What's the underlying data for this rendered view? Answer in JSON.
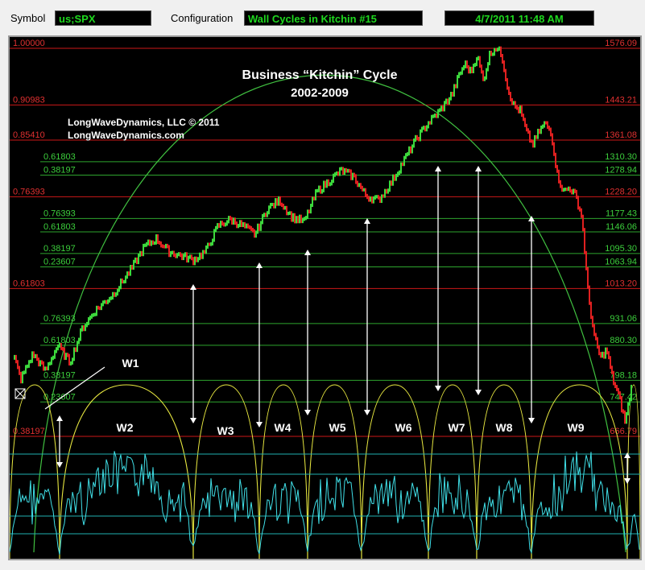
{
  "toolbar": {
    "symbol_label": "Symbol",
    "symbol_value": "us;SPX",
    "config_label": "Configuration",
    "config_value": "Wall Cycles in Kitchin #15",
    "datetime_value": "4/7/2011 11:48 AM"
  },
  "colors": {
    "background": "#000000",
    "red_level": "#cc1818",
    "green_level": "#2ea52e",
    "cyan_level": "#20b0b0",
    "price_up": "#3cd83c",
    "price_down": "#e02020",
    "oscillator": "#40e0e8",
    "arc": "#e8e840",
    "big_arc": "#40c040"
  },
  "chart_data": {
    "type": "line",
    "title": "Business “Kitchin” Cycle",
    "subtitle": "2002-2009",
    "credit": [
      "LongWaveDynamics, LLC © 2011",
      "LongWaveDynamics.com"
    ],
    "ylim": [
      666.79,
      1576.09
    ],
    "levels": [
      {
        "ratio": "1.00000",
        "price": "1576.09",
        "value": 1576.09,
        "kind": "red"
      },
      {
        "ratio": "0.90983",
        "price": "1443.21",
        "value": 1443.21,
        "kind": "red"
      },
      {
        "ratio": "0.85410",
        "price": "1361.08",
        "value": 1361.08,
        "kind": "red"
      },
      {
        "ratio": "0.61803",
        "price": "1310.30",
        "value": 1310.3,
        "kind": "green"
      },
      {
        "ratio": "0.38197",
        "price": "1278.94",
        "value": 1278.94,
        "kind": "green"
      },
      {
        "ratio": "0.76393",
        "price": "1228.20",
        "value": 1228.2,
        "kind": "red"
      },
      {
        "ratio": "0.76393",
        "price": "1177.43",
        "value": 1177.43,
        "kind": "green"
      },
      {
        "ratio": "0.61803",
        "price": "1146.06",
        "value": 1146.06,
        "kind": "green"
      },
      {
        "ratio": "0.38197",
        "price": "1095.30",
        "value": 1095.3,
        "kind": "green"
      },
      {
        "ratio": "0.23607",
        "price": "1063.94",
        "value": 1063.94,
        "kind": "green"
      },
      {
        "ratio": "0.61803",
        "price": "1013.20",
        "value": 1013.2,
        "kind": "red"
      },
      {
        "ratio": "0.76393",
        "price": "931.06",
        "value": 931.06,
        "kind": "green"
      },
      {
        "ratio": "0.61803",
        "price": "880.30",
        "value": 880.3,
        "kind": "green"
      },
      {
        "ratio": "0.38197",
        "price": "798.18",
        "value": 798.18,
        "kind": "green"
      },
      {
        "ratio": "0.23607",
        "price": "747.42",
        "value": 747.42,
        "kind": "green"
      },
      {
        "ratio": "0.38197",
        "price": "666.79",
        "value": 666.79,
        "kind": "red"
      }
    ],
    "wave_labels": [
      "W1",
      "W2",
      "W3",
      "W4",
      "W5",
      "W6",
      "W7",
      "W8",
      "W9"
    ],
    "price_series": [
      [
        0,
        850
      ],
      [
        0.01,
        800
      ],
      [
        0.03,
        860
      ],
      [
        0.05,
        820
      ],
      [
        0.07,
        880
      ],
      [
        0.09,
        840
      ],
      [
        0.11,
        920
      ],
      [
        0.13,
        960
      ],
      [
        0.16,
        1000
      ],
      [
        0.19,
        1060
      ],
      [
        0.21,
        1110
      ],
      [
        0.23,
        1130
      ],
      [
        0.25,
        1100
      ],
      [
        0.27,
        1090
      ],
      [
        0.29,
        1080
      ],
      [
        0.31,
        1100
      ],
      [
        0.33,
        1160
      ],
      [
        0.35,
        1175
      ],
      [
        0.37,
        1160
      ],
      [
        0.39,
        1140
      ],
      [
        0.41,
        1200
      ],
      [
        0.43,
        1220
      ],
      [
        0.45,
        1180
      ],
      [
        0.47,
        1170
      ],
      [
        0.49,
        1240
      ],
      [
        0.51,
        1265
      ],
      [
        0.53,
        1290
      ],
      [
        0.55,
        1275
      ],
      [
        0.57,
        1230
      ],
      [
        0.59,
        1220
      ],
      [
        0.61,
        1260
      ],
      [
        0.63,
        1310
      ],
      [
        0.65,
        1360
      ],
      [
        0.67,
        1400
      ],
      [
        0.69,
        1430
      ],
      [
        0.71,
        1470
      ],
      [
        0.72,
        1510
      ],
      [
        0.73,
        1540
      ],
      [
        0.74,
        1520
      ],
      [
        0.75,
        1560
      ],
      [
        0.76,
        1500
      ],
      [
        0.77,
        1560
      ],
      [
        0.78,
        1580
      ],
      [
        0.79,
        1560
      ],
      [
        0.8,
        1480
      ],
      [
        0.81,
        1440
      ],
      [
        0.82,
        1430
      ],
      [
        0.83,
        1380
      ],
      [
        0.84,
        1350
      ],
      [
        0.85,
        1380
      ],
      [
        0.86,
        1400
      ],
      [
        0.87,
        1380
      ],
      [
        0.88,
        1280
      ],
      [
        0.89,
        1240
      ],
      [
        0.9,
        1250
      ],
      [
        0.91,
        1230
      ],
      [
        0.92,
        1180
      ],
      [
        0.93,
        1000
      ],
      [
        0.94,
        900
      ],
      [
        0.95,
        850
      ],
      [
        0.96,
        870
      ],
      [
        0.97,
        800
      ],
      [
        0.98,
        760
      ],
      [
        0.99,
        700
      ],
      [
        1.0,
        780
      ]
    ]
  }
}
